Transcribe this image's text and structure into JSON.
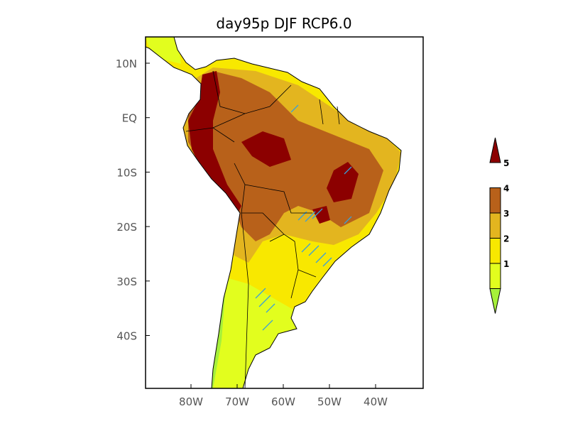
{
  "chart_data": {
    "type": "heatmap",
    "title": "day95p DJF RCP6.0",
    "xlabel": "",
    "ylabel": "",
    "xlim": [
      "90W",
      "30W"
    ],
    "ylim": [
      "49S",
      "15N"
    ],
    "x_ticks": [
      "80W",
      "70W",
      "60W",
      "50W",
      "40W"
    ],
    "y_ticks": [
      "10N",
      "EQ",
      "10S",
      "20S",
      "30S",
      "40S"
    ],
    "colorbar": {
      "levels": [
        "1",
        "2",
        "3",
        "4",
        "5"
      ],
      "colors": [
        "#a6f03a",
        "#e2fe1e",
        "#f8e800",
        "#e3b51f",
        "#b8611a",
        "#8c0000"
      ],
      "extend": "both"
    },
    "hatch_color": "#3aa0d8",
    "description_regions": {
      "max_values": "Andes of Peru/Ecuador/Colombia, central Amazon, central-east Brazil (values > 5)",
      "min_values": "southern Chile and Patagonia (values 1-2)"
    }
  }
}
